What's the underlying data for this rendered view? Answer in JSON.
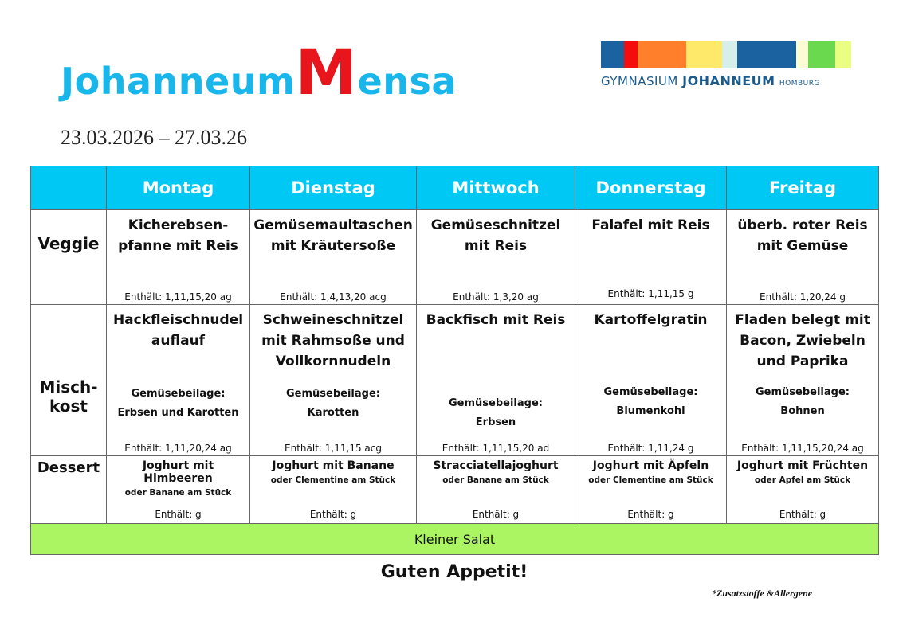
{
  "header": {
    "title_part1": "Johanneum",
    "title_m": "M",
    "title_part2": "ensa",
    "date_range": "23.03.2026 – 27.03.26"
  },
  "logo": {
    "text_gymnasium": "GYMNASIUM",
    "text_johanneum": "JOHANNEUM",
    "text_homburg": "HOMBURG",
    "bar_colors": [
      "#1a62a0",
      "#f50d0d",
      "#ff7f2a",
      "#ffe96a",
      "#d6efea",
      "#1a62a0",
      "#fdfbd3",
      "#6ad94e",
      "#eaff82"
    ]
  },
  "colors": {
    "header_bg": "#00c8f5",
    "salad_bg": "#acf562",
    "title_blue": "#18b6ea",
    "title_red": "#e8151d"
  },
  "days": [
    "Montag",
    "Dienstag",
    "Mittwoch",
    "Donnerstag",
    "Freitag"
  ],
  "rows": {
    "veggie": "Veggie",
    "mischkost": "Misch-\nkost",
    "dessert": "Dessert"
  },
  "veggie": [
    {
      "dish": "Kicherebsen-\npfanne mit Reis",
      "allergens": "Enthält: 1,11,15,20 ag"
    },
    {
      "dish": "Gemüsemaultaschen\nmit Kräutersoße",
      "allergens": "Enthält: 1,4,13,20 acg"
    },
    {
      "dish": "Gemüseschnitzel\nmit Reis",
      "allergens": "Enthält: 1,3,20 ag"
    },
    {
      "dish": "Falafel mit Reis",
      "allergens": "Enthält: 1,11,15 g"
    },
    {
      "dish": "überb. roter Reis\nmit Gemüse",
      "allergens": "Enthält: 1,20,24 g"
    }
  ],
  "mischkost": [
    {
      "dish": "Hackfleischnudel\nauflauf",
      "side_label": "Gemüsebeilage:",
      "side": "Erbsen und Karotten",
      "allergens": "Enthält: 1,11,20,24 ag"
    },
    {
      "dish": "Schweineschnitzel\nmit Rahmsoße und\nVollkornnudeln",
      "side_label": "Gemüsebeilage:",
      "side": "Karotten",
      "allergens": "Enthält: 1,11,15 acg"
    },
    {
      "dish": "Backfisch mit Reis",
      "side_label": "Gemüsebeilage:",
      "side": "Erbsen",
      "allergens": "Enthält: 1,11,15,20 ad"
    },
    {
      "dish": "Kartoffelgratin",
      "side_label": "Gemüsebeilage:",
      "side": "Blumenkohl",
      "allergens": "Enthält: 1,11,24 g"
    },
    {
      "dish": "Fladen belegt mit\nBacon, Zwiebeln\nund Paprika",
      "side_label": "Gemüsebeilage:",
      "side": "Bohnen",
      "allergens": "Enthält: 1,11,15,20,24 ag"
    }
  ],
  "dessert": [
    {
      "dish": "Joghurt mit Himbeeren",
      "alt": "oder Banane am Stück",
      "allergens": "Enthält:  g"
    },
    {
      "dish": "Joghurt mit Banane",
      "alt": "oder Clementine am Stück",
      "allergens": "Enthält:  g"
    },
    {
      "dish": "Stracciatellajoghurt",
      "alt": "oder Banane am Stück",
      "allergens": "Enthält:  g"
    },
    {
      "dish": "Joghurt mit Äpfeln",
      "alt": "oder Clementine am Stück",
      "allergens": "Enthält: g"
    },
    {
      "dish": "Joghurt mit Früchten",
      "alt": "oder Apfel am Stück",
      "allergens": "Enthält: g"
    }
  ],
  "salad": "Kleiner Salat",
  "footer": {
    "greeting": "Guten Appetit!",
    "note": "*Zusatzstoffe &Allergene"
  }
}
